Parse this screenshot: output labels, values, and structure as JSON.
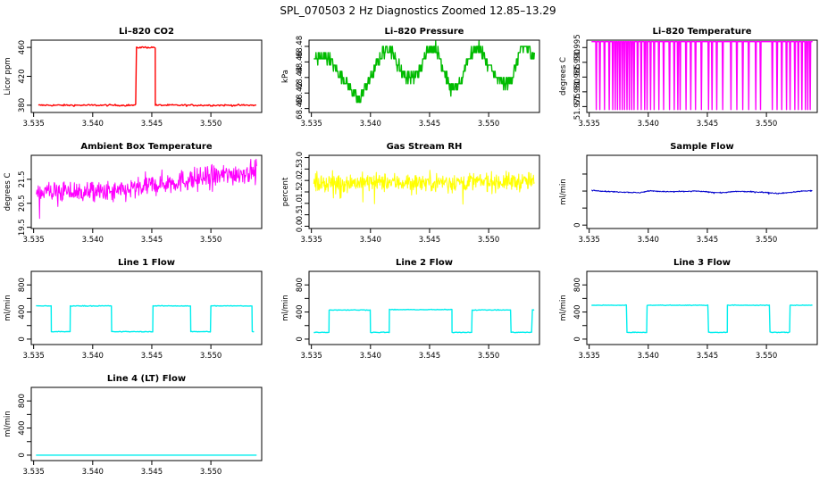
{
  "main_title": "SPL_070503  2 Hz Diagnostics Zoomed 12.85–13.29",
  "chart_data": [
    {
      "type": "line",
      "title": "Li–820 CO2",
      "xlabel": "",
      "ylabel": "Licor ppm",
      "color": "#ff0000",
      "xlim": [
        3.5348,
        3.5543
      ],
      "ylim": [
        370,
        470
      ],
      "xticks": [
        3.535,
        3.54,
        3.545,
        3.55
      ],
      "xtick_labels": [
        "3.535",
        "3.540",
        "3.545",
        "3.550"
      ],
      "yticks": [
        380,
        420,
        460
      ],
      "ytick_labels": [
        "380",
        "420",
        "460"
      ],
      "pattern": "step",
      "base": 380,
      "noise": 1.2,
      "segments": [
        [
          3.5354,
          3.5437,
          380
        ],
        [
          3.5437,
          3.5453,
          460
        ],
        [
          3.5453,
          3.5539,
          380
        ]
      ]
    },
    {
      "type": "line",
      "title": "Li–820 Pressure",
      "xlabel": "",
      "ylabel": "kPa",
      "color": "#00bb00",
      "xlim": [
        3.5348,
        3.5543
      ],
      "ylim": [
        68.395,
        68.488
      ],
      "xticks": [
        3.535,
        3.54,
        3.545,
        3.55
      ],
      "xtick_labels": [
        "3.535",
        "3.540",
        "3.545",
        "3.550"
      ],
      "yticks": [
        68.4,
        68.42,
        68.44,
        68.46,
        68.48
      ],
      "ytick_labels": [
        "68.40",
        "68.42",
        "68.44",
        "68.46",
        "68.48"
      ],
      "pattern": "quantized",
      "quantum": 0.008,
      "knots": [
        [
          3.5352,
          68.465
        ],
        [
          3.5365,
          68.465
        ],
        [
          3.5375,
          68.44
        ],
        [
          3.5382,
          68.43
        ],
        [
          3.539,
          68.41
        ],
        [
          3.54,
          68.44
        ],
        [
          3.541,
          68.47
        ],
        [
          3.5416,
          68.48
        ],
        [
          3.5422,
          68.46
        ],
        [
          3.543,
          68.44
        ],
        [
          3.5437,
          68.44
        ],
        [
          3.5443,
          68.45
        ],
        [
          3.5447,
          68.475
        ],
        [
          3.5455,
          68.48
        ],
        [
          3.5462,
          68.45
        ],
        [
          3.5468,
          68.425
        ],
        [
          3.5476,
          68.43
        ],
        [
          3.5482,
          68.465
        ],
        [
          3.5492,
          68.48
        ],
        [
          3.55,
          68.455
        ],
        [
          3.5506,
          68.44
        ],
        [
          3.5514,
          68.43
        ],
        [
          3.552,
          68.44
        ],
        [
          3.5526,
          68.47
        ],
        [
          3.5531,
          68.48
        ],
        [
          3.5539,
          68.468
        ]
      ]
    },
    {
      "type": "line",
      "title": "Li–820 Temperature",
      "xlabel": "",
      "ylabel": "degrees C",
      "color": "#ff00ff",
      "xlim": [
        3.5348,
        3.5543
      ],
      "ylim": [
        51.973,
        51.9975
      ],
      "xticks": [
        3.535,
        3.54,
        3.545,
        3.55
      ],
      "xtick_labels": [
        "3.535",
        "3.540",
        "3.545",
        "3.550"
      ],
      "yticks": [
        51.975,
        51.98,
        51.985,
        51.99,
        51.995
      ],
      "ytick_labels": [
        "51.975",
        "51.980",
        "51.985",
        "51.990",
        "51.995"
      ],
      "pattern": "spikes",
      "base": 51.997,
      "spike_value": 51.974,
      "spike_x": [
        3.5356,
        3.5359,
        3.5363,
        3.5367,
        3.537,
        3.5372,
        3.5374,
        3.5376,
        3.5378,
        3.538,
        3.5382,
        3.5384,
        3.5386,
        3.5388,
        3.5391,
        3.5394,
        3.5397,
        3.5399,
        3.5402,
        3.5405,
        3.5409,
        3.5413,
        3.5418,
        3.5422,
        3.5425,
        3.5427,
        3.5432,
        3.5436,
        3.544,
        3.5445,
        3.5451,
        3.5454,
        3.5458,
        3.5463,
        3.547,
        3.5475,
        3.548,
        3.5485,
        3.5491,
        3.5495,
        3.5505,
        3.5509,
        3.5513,
        3.5517,
        3.552,
        3.5524,
        3.5527,
        3.553,
        3.5533,
        3.5535,
        3.5537
      ]
    },
    {
      "type": "line",
      "title": "Ambient Box Temperature",
      "xlabel": "",
      "ylabel": "degrees C",
      "color": "#ff00ff",
      "xlim": [
        3.5348,
        3.5543
      ],
      "ylim": [
        19.45,
        22.5
      ],
      "xticks": [
        3.535,
        3.54,
        3.545,
        3.55
      ],
      "xtick_labels": [
        "3.535",
        "3.540",
        "3.545",
        "3.550"
      ],
      "yticks": [
        19.5,
        20.5,
        21.5
      ],
      "ytick_labels": [
        "19.5",
        "20.5",
        "21.5"
      ],
      "pattern": "noise",
      "noise": 0.45,
      "knots": [
        [
          3.5352,
          21.0
        ],
        [
          3.542,
          20.95
        ],
        [
          3.5455,
          21.3
        ],
        [
          3.5539,
          21.85
        ]
      ]
    },
    {
      "type": "line",
      "title": "Gas Stream RH",
      "xlabel": "",
      "ylabel": "percent",
      "color": "#ffff00",
      "xlim": [
        3.5348,
        3.5543
      ],
      "ylim": [
        -0.1,
        3.1
      ],
      "xticks": [
        3.535,
        3.54,
        3.545,
        3.55
      ],
      "xtick_labels": [
        "3.535",
        "3.540",
        "3.545",
        "3.550"
      ],
      "yticks": [
        0.0,
        0.5,
        1.0,
        1.5,
        2.0,
        2.5,
        3.0
      ],
      "ytick_labels": [
        "0.0",
        "0.5",
        "1.0",
        "1.5",
        "2.0",
        "2.5",
        "3.0"
      ],
      "pattern": "noise",
      "noise": 0.4,
      "knots": [
        [
          3.5352,
          1.9
        ],
        [
          3.5539,
          1.95
        ]
      ]
    },
    {
      "type": "line",
      "title": "Sample Flow",
      "xlabel": "",
      "ylabel": "ml/min",
      "color": "#0000cc",
      "xlim": [
        3.5348,
        3.5543
      ],
      "ylim": [
        -0.1,
        2.05
      ],
      "xticks": [
        3.535,
        3.54,
        3.545,
        3.55
      ],
      "xtick_labels": [
        "3.535",
        "3.540",
        "3.545",
        "3.550"
      ],
      "yticks": [
        0.0,
        0.5,
        1.0,
        1.5
      ],
      "ytick_labels": [
        "0",
        "",
        "",
        ""
      ],
      "pattern": "noise",
      "noise": 0.015,
      "knots": [
        [
          3.5352,
          1.02
        ],
        [
          3.537,
          0.98
        ],
        [
          3.538,
          0.97
        ],
        [
          3.5392,
          0.95
        ],
        [
          3.5402,
          1.01
        ],
        [
          3.5415,
          0.98
        ],
        [
          3.543,
          0.99
        ],
        [
          3.544,
          1.0
        ],
        [
          3.5452,
          0.97
        ],
        [
          3.5462,
          0.95
        ],
        [
          3.5475,
          0.99
        ],
        [
          3.5487,
          0.98
        ],
        [
          3.55,
          0.96
        ],
        [
          3.551,
          0.93
        ],
        [
          3.552,
          0.96
        ],
        [
          3.553,
          1.0
        ],
        [
          3.5539,
          1.01
        ]
      ]
    },
    {
      "type": "line",
      "title": "Line 1 Flow",
      "xlabel": "",
      "ylabel": "ml/min",
      "color": "#00eeee",
      "xlim": [
        3.5348,
        3.5543
      ],
      "ylim": [
        -80,
        1000
      ],
      "xticks": [
        3.535,
        3.54,
        3.545,
        3.55
      ],
      "xtick_labels": [
        "3.535",
        "3.540",
        "3.545",
        "3.550"
      ],
      "yticks": [
        0,
        200,
        400,
        600,
        800
      ],
      "ytick_labels": [
        "0",
        "400",
        "800"
      ],
      "ytick_label_values": [
        0,
        400,
        800
      ],
      "pattern": "step",
      "noise": 5,
      "segments": [
        [
          3.5352,
          3.5365,
          490
        ],
        [
          3.5365,
          3.5381,
          110
        ],
        [
          3.5381,
          3.5416,
          490
        ],
        [
          3.5416,
          3.5451,
          110
        ],
        [
          3.5451,
          3.5483,
          490
        ],
        [
          3.5483,
          3.55,
          110
        ],
        [
          3.55,
          3.5535,
          490
        ],
        [
          3.5535,
          3.5537,
          110
        ]
      ]
    },
    {
      "type": "line",
      "title": "Line 2 Flow",
      "xlabel": "",
      "ylabel": "ml/min",
      "color": "#00eeee",
      "xlim": [
        3.5348,
        3.5543
      ],
      "ylim": [
        -80,
        1000
      ],
      "xticks": [
        3.535,
        3.54,
        3.545,
        3.55
      ],
      "xtick_labels": [
        "3.535",
        "3.540",
        "3.545",
        "3.550"
      ],
      "yticks": [
        0,
        200,
        400,
        600,
        800
      ],
      "ytick_labels": [
        "0",
        "400",
        "800"
      ],
      "ytick_label_values": [
        0,
        400,
        800
      ],
      "pattern": "step",
      "noise": 5,
      "segments": [
        [
          3.5352,
          3.5365,
          100
        ],
        [
          3.5365,
          3.54,
          430
        ],
        [
          3.54,
          3.5416,
          100
        ],
        [
          3.5416,
          3.5469,
          435
        ],
        [
          3.5469,
          3.5486,
          100
        ],
        [
          3.5486,
          3.5519,
          430
        ],
        [
          3.5519,
          3.5537,
          100
        ],
        [
          3.5537,
          3.5539,
          430
        ]
      ]
    },
    {
      "type": "line",
      "title": "Line 3 Flow",
      "xlabel": "",
      "ylabel": "ml/min",
      "color": "#00eeee",
      "xlim": [
        3.5348,
        3.5543
      ],
      "ylim": [
        -80,
        1000
      ],
      "xticks": [
        3.535,
        3.54,
        3.545,
        3.55
      ],
      "xtick_labels": [
        "3.535",
        "3.540",
        "3.545",
        "3.550"
      ],
      "yticks": [
        0,
        200,
        400,
        600,
        800
      ],
      "ytick_labels": [
        "0",
        "400",
        "800"
      ],
      "ytick_label_values": [
        0,
        400,
        800
      ],
      "pattern": "step",
      "noise": 5,
      "segments": [
        [
          3.5352,
          3.5382,
          500
        ],
        [
          3.5382,
          3.5399,
          100
        ],
        [
          3.5399,
          3.5451,
          500
        ],
        [
          3.5451,
          3.5467,
          100
        ],
        [
          3.5467,
          3.5503,
          500
        ],
        [
          3.5503,
          3.552,
          100
        ],
        [
          3.552,
          3.5539,
          500
        ]
      ]
    },
    {
      "type": "line",
      "title": "Line 4 (LT) Flow",
      "xlabel": "",
      "ylabel": "ml/min",
      "color": "#00eeee",
      "xlim": [
        3.5348,
        3.5543
      ],
      "ylim": [
        -80,
        1000
      ],
      "xticks": [
        3.535,
        3.54,
        3.545,
        3.55
      ],
      "xtick_labels": [
        "3.535",
        "3.540",
        "3.545",
        "3.550"
      ],
      "yticks": [
        0,
        200,
        400,
        600,
        800
      ],
      "ytick_labels": [
        "0",
        "400",
        "800"
      ],
      "ytick_label_values": [
        0,
        400,
        800
      ],
      "pattern": "step",
      "noise": 0,
      "segments": [
        [
          3.5352,
          3.5539,
          0
        ]
      ]
    }
  ]
}
